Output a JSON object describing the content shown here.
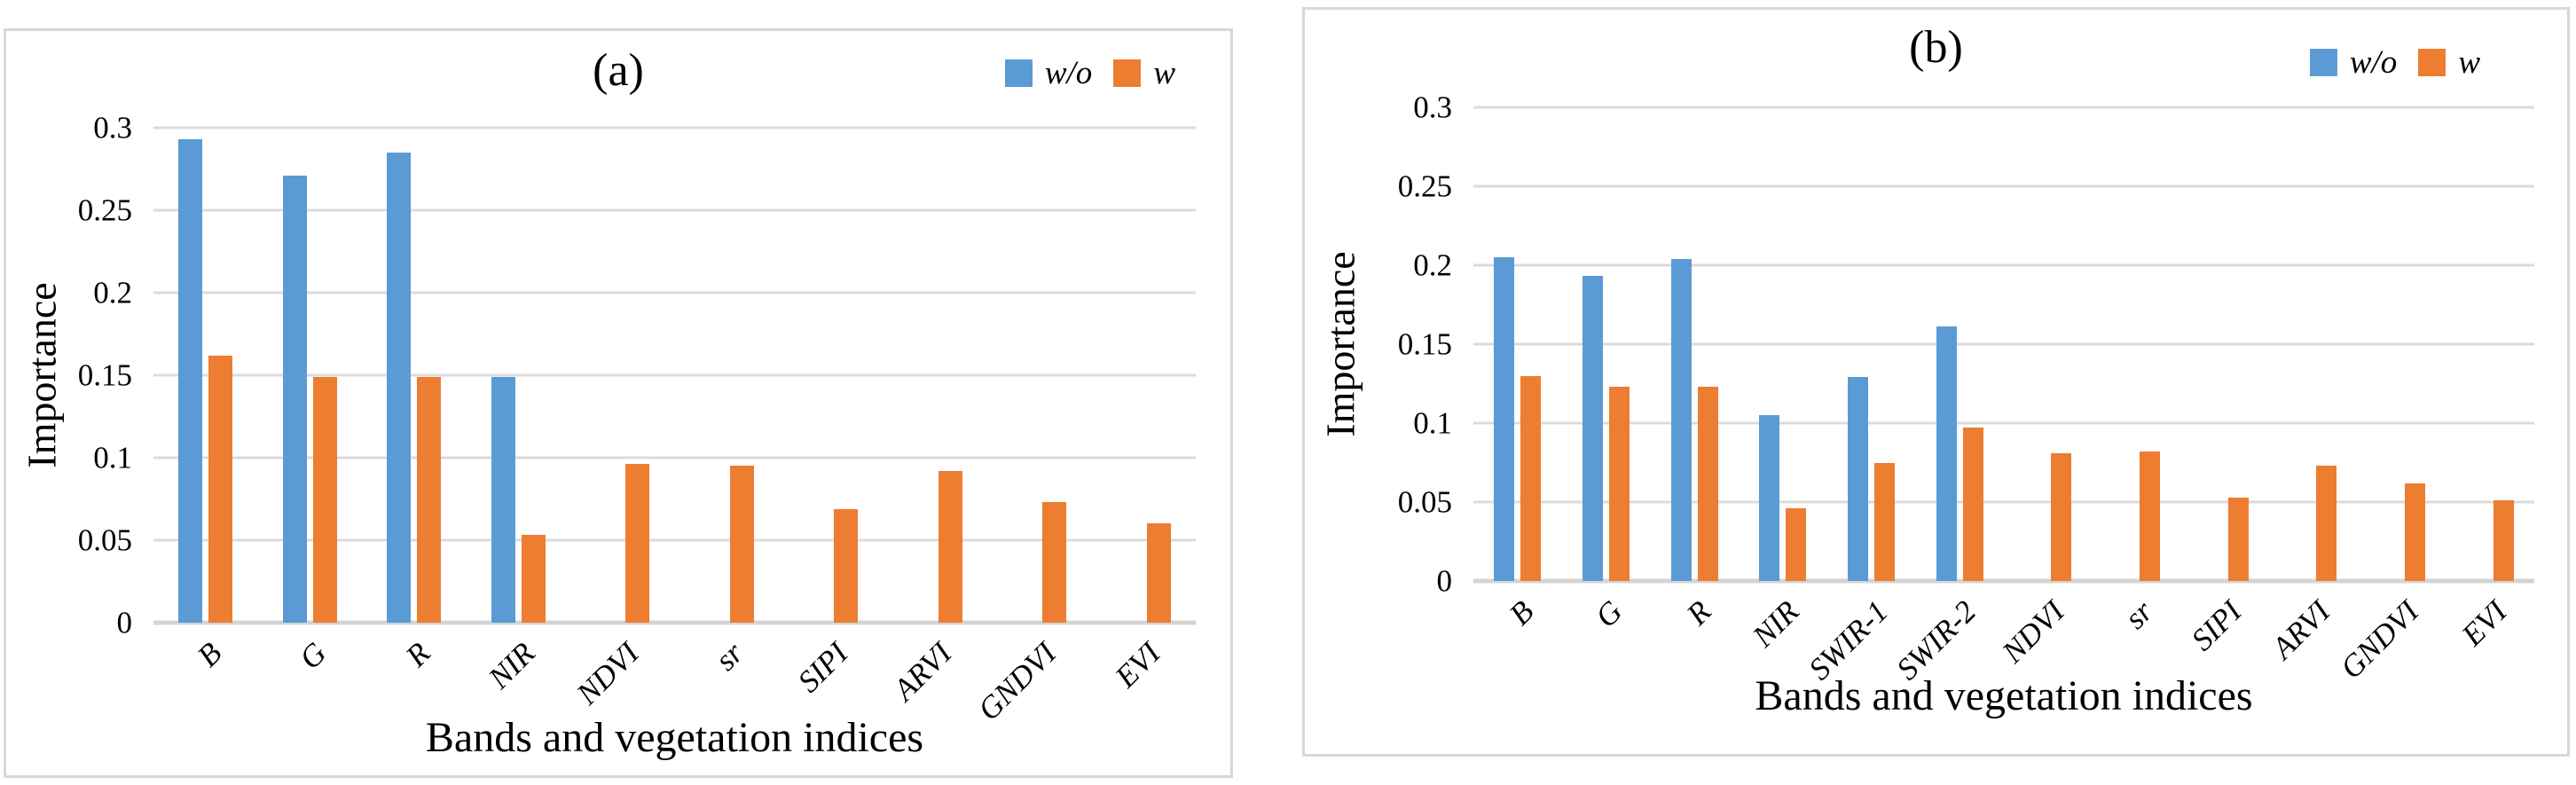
{
  "page": {
    "background": "#ffffff"
  },
  "colors": {
    "series_wo": "#5B9BD5",
    "series_w": "#ED7D31",
    "gridline": "#DBDBDB",
    "panel_border": "#D8D8D8",
    "text": "#000000"
  },
  "chart_data": [
    {
      "type": "bar",
      "title": "(a)",
      "xlabel": "Bands and vegetation indices",
      "ylabel": "Importance",
      "ylim": [
        0,
        0.3
      ],
      "grid": true,
      "legend_position": "top-right",
      "ytick_values": [
        0.3,
        0.25,
        0.2,
        0.15,
        0.1,
        0.05,
        0
      ],
      "ytick_labels": [
        "0.3",
        "0.25",
        "0.2",
        "0.15",
        "0.1",
        "0.05",
        "0"
      ],
      "categories": [
        "B",
        "G",
        "R",
        "NIR",
        "NDVI",
        "sr",
        "SIPI",
        "ARVI",
        "GNDVI",
        "EVI"
      ],
      "series": [
        {
          "name": "w/o",
          "color": "#5B9BD5",
          "values": [
            0.293,
            0.271,
            0.285,
            0.149,
            0,
            0,
            0,
            0,
            0,
            0
          ]
        },
        {
          "name": "w",
          "color": "#ED7D31",
          "values": [
            0.162,
            0.149,
            0.149,
            0.053,
            0.096,
            0.095,
            0.069,
            0.092,
            0.073,
            0.06
          ]
        }
      ]
    },
    {
      "type": "bar",
      "title": "(b)",
      "xlabel": "Bands and vegetation indices",
      "ylabel": "Importance",
      "ylim": [
        0,
        0.3
      ],
      "grid": true,
      "legend_position": "top-right",
      "ytick_values": [
        0.3,
        0.25,
        0.2,
        0.15,
        0.1,
        0.05,
        0
      ],
      "ytick_labels": [
        "0.3",
        "0.25",
        "0.2",
        "0.15",
        "0.1",
        "0.05",
        "0"
      ],
      "categories": [
        "B",
        "G",
        "R",
        "NIR",
        "SWIR-1",
        "SWIR-2",
        "NDVI",
        "sr",
        "SIPI",
        "ARVI",
        "GNDVI",
        "EVI"
      ],
      "series": [
        {
          "name": "w/o",
          "color": "#5B9BD5",
          "values": [
            0.205,
            0.193,
            0.204,
            0.105,
            0.129,
            0.161,
            0,
            0,
            0,
            0,
            0,
            0
          ]
        },
        {
          "name": "w",
          "color": "#ED7D31",
          "values": [
            0.13,
            0.123,
            0.123,
            0.046,
            0.075,
            0.097,
            0.081,
            0.082,
            0.053,
            0.073,
            0.062,
            0.051
          ]
        }
      ]
    }
  ]
}
